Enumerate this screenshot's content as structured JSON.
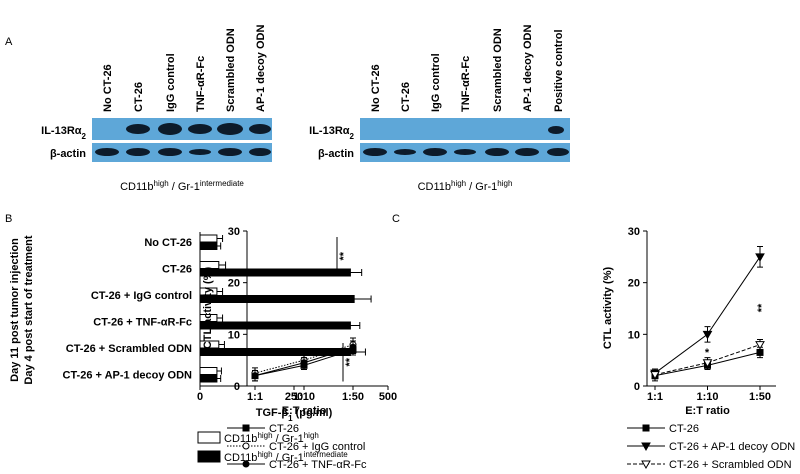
{
  "panel_labels": [
    "A",
    "B",
    "C"
  ],
  "blots": [
    {
      "lanes": [
        "No CT-26",
        "CT-26",
        "IgG control",
        "TNF-αR-Fc",
        "Scrambled ODN",
        "AP-1 decoy ODN"
      ],
      "rows": [
        [
          "IL-13Rα",
          "2"
        ],
        [
          "β-actin"
        ]
      ],
      "caption": [
        "CD11b",
        "high",
        " / Gr-1",
        "intermediate"
      ]
    },
    {
      "lanes": [
        "No CT-26",
        "CT-26",
        "IgG control",
        "TNF-αR-Fc",
        "Scrambled ODN",
        "AP-1 decoy ODN",
        "Positive control"
      ],
      "rows": [
        [
          "IL-13Rα",
          "2"
        ],
        [
          "β-actin"
        ]
      ],
      "caption": [
        "CD11b",
        "high",
        " / Gr-1",
        "high"
      ]
    }
  ],
  "chart_data": [
    {
      "type": "bar",
      "orientation": "horizontal",
      "y_label": [
        "Day 11 post tumor injection",
        "Day 4 post start of treatment"
      ],
      "x_label": [
        "TGF-β",
        "1",
        " (pg/ml)"
      ],
      "categories": [
        "No CT-26",
        "CT-26",
        "CT-26 + IgG control",
        "CT-26 + TNF-αR-Fc",
        "CT-26 + Scrambled ODN",
        "CT-26 + AP-1 decoy ODN"
      ],
      "series": [
        {
          "name": [
            "CD11b",
            "high",
            " / Gr-1",
            "high"
          ],
          "color": "#ffffff",
          "values": [
            45,
            50,
            45,
            45,
            50,
            45
          ],
          "errors": [
            15,
            18,
            15,
            15,
            15,
            12
          ]
        },
        {
          "name": [
            "CD11b",
            "high",
            " / Gr-1",
            "intermediate"
          ],
          "color": "#000000",
          "values": [
            45,
            400,
            410,
            400,
            400,
            45
          ],
          "errors": [
            10,
            30,
            45,
            25,
            40,
            10
          ]
        }
      ],
      "xlim": [
        0,
        500
      ],
      "xticks": [
        0,
        250,
        500
      ],
      "annotations": [
        "**",
        "**"
      ]
    },
    {
      "type": "line",
      "y_label": "CTL activity (%)",
      "x_label": "E:T ratio",
      "categories": [
        "1:1",
        "1:10",
        "1:50"
      ],
      "series": [
        {
          "name": "CT-26",
          "color": "#000000",
          "marker": "square",
          "filled": true,
          "dash": "solid",
          "values": [
            2,
            4,
            7
          ],
          "errors": [
            1,
            0.8,
            1
          ]
        },
        {
          "name": "CT-26 + IgG control",
          "color": "#000000",
          "marker": "circle",
          "filled": false,
          "dash": "dotted",
          "values": [
            2.5,
            5,
            8
          ],
          "errors": [
            1,
            1,
            1.3
          ]
        },
        {
          "name": "CT-26 + TNF-αR-Fc",
          "color": "#000000",
          "marker": "circle",
          "filled": true,
          "dash": "solid",
          "values": [
            2,
            4.5,
            7.5
          ],
          "errors": [
            1,
            1,
            1.2
          ]
        }
      ],
      "ylim": [
        0,
        30
      ],
      "yticks": [
        0,
        10,
        20,
        30
      ],
      "annotations": []
    },
    {
      "type": "line",
      "y_label": "CTL activity (%)",
      "x_label": "E:T ratio",
      "categories": [
        "1:1",
        "1:10",
        "1:50"
      ],
      "series": [
        {
          "name": "CT-26",
          "color": "#000000",
          "marker": "square",
          "filled": true,
          "dash": "solid",
          "values": [
            2,
            4,
            6.5
          ],
          "errors": [
            1,
            0.8,
            1
          ]
        },
        {
          "name": "CT-26 + AP-1 decoy ODN",
          "color": "#000000",
          "marker": "triangle",
          "filled": true,
          "dash": "solid",
          "values": [
            2.5,
            10,
            25
          ],
          "errors": [
            0.8,
            1.5,
            2
          ]
        },
        {
          "name": "CT-26 + Scrambled ODN",
          "color": "#000000",
          "marker": "triangle",
          "filled": false,
          "dash": "dashed",
          "values": [
            2.2,
            4.5,
            8
          ],
          "errors": [
            0.8,
            1,
            1
          ]
        }
      ],
      "ylim": [
        0,
        30
      ],
      "yticks": [
        0,
        10,
        20,
        30
      ],
      "annotations": [
        "*",
        "**"
      ]
    }
  ]
}
